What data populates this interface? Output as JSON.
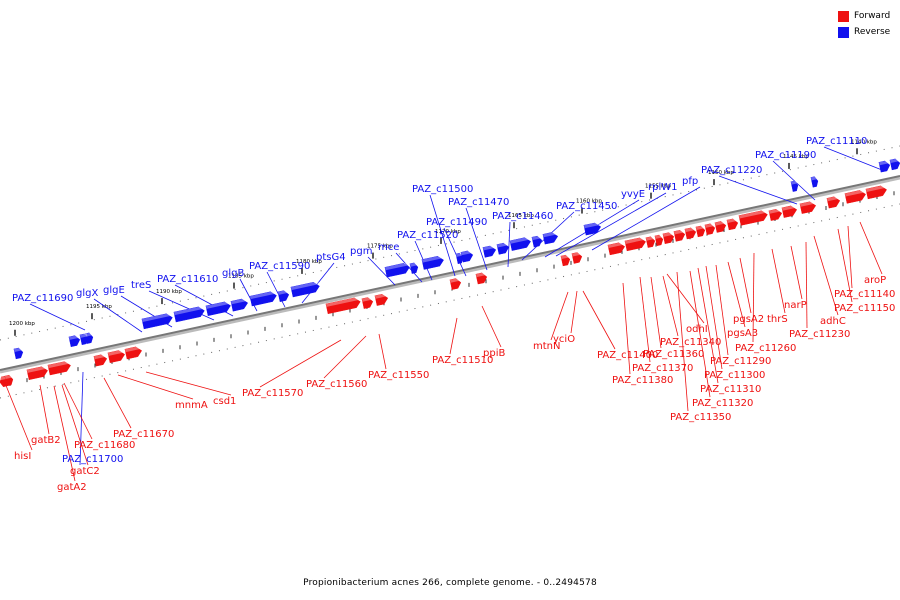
{
  "legend": {
    "forward_label": "Forward",
    "reverse_label": "Reverse"
  },
  "colors": {
    "forward": "#ee1111",
    "reverse": "#1111ee",
    "backbone": "#777777"
  },
  "caption": "Propionibacterium acnes 266, complete genome. - 0..2494578",
  "scale_ticks": [
    "1200 kbp",
    "1195 kbp",
    "1190 kbp",
    "1185 kbp",
    "1180 kbp",
    "1175 kbp",
    "1170 kbp",
    "1165 kbp",
    "1160 kbp",
    "1155 kbp",
    "1150 kbp",
    "1145 kbp",
    "1140 kbp"
  ],
  "genes": [
    {
      "label": "hisI",
      "strand": "forward"
    },
    {
      "label": "gatB2",
      "strand": "forward"
    },
    {
      "label": "PAZ_c11700",
      "strand": "reverse"
    },
    {
      "label": "PAZ_c11680",
      "strand": "forward"
    },
    {
      "label": "gatC2",
      "strand": "forward"
    },
    {
      "label": "gatA2",
      "strand": "forward"
    },
    {
      "label": "PAZ_c11670",
      "strand": "forward"
    },
    {
      "label": "mnmA",
      "strand": "forward"
    },
    {
      "label": "csd1",
      "strand": "forward"
    },
    {
      "label": "PAZ_c11570",
      "strand": "forward"
    },
    {
      "label": "PAZ_c11560",
      "strand": "forward"
    },
    {
      "label": "PAZ_c11550",
      "strand": "forward"
    },
    {
      "label": "PAZ_c11510",
      "strand": "forward"
    },
    {
      "label": "ppiB",
      "strand": "forward"
    },
    {
      "label": "mtnN",
      "strand": "forward"
    },
    {
      "label": "yciO",
      "strand": "forward"
    },
    {
      "label": "PAZ_c11400",
      "strand": "forward"
    },
    {
      "label": "PAZ_c11380",
      "strand": "forward"
    },
    {
      "label": "PAZ_c11370",
      "strand": "forward"
    },
    {
      "label": "PAZ_c11360",
      "strand": "forward"
    },
    {
      "label": "PAZ_c11340",
      "strand": "forward"
    },
    {
      "label": "odhI",
      "strand": "forward"
    },
    {
      "label": "PAZ_c11350",
      "strand": "forward"
    },
    {
      "label": "PAZ_c11320",
      "strand": "forward"
    },
    {
      "label": "PAZ_c11310",
      "strand": "forward"
    },
    {
      "label": "PAZ_c11300",
      "strand": "forward"
    },
    {
      "label": "PAZ_c11290",
      "strand": "forward"
    },
    {
      "label": "pgsA3",
      "strand": "forward"
    },
    {
      "label": "pgsA2",
      "strand": "forward"
    },
    {
      "label": "PAZ_c11260",
      "strand": "forward"
    },
    {
      "label": "thrS",
      "strand": "forward"
    },
    {
      "label": "narP",
      "strand": "forward"
    },
    {
      "label": "PAZ_c11230",
      "strand": "forward"
    },
    {
      "label": "adhC",
      "strand": "forward"
    },
    {
      "label": "PAZ_c11150",
      "strand": "forward"
    },
    {
      "label": "PAZ_c11140",
      "strand": "forward"
    },
    {
      "label": "aroP",
      "strand": "forward"
    },
    {
      "label": "PAZ_c11690",
      "strand": "reverse"
    },
    {
      "label": "glgX",
      "strand": "reverse"
    },
    {
      "label": "glgE",
      "strand": "reverse"
    },
    {
      "label": "treS",
      "strand": "reverse"
    },
    {
      "label": "PAZ_c11610",
      "strand": "reverse"
    },
    {
      "label": "glgB",
      "strand": "reverse"
    },
    {
      "label": "PAZ_c11590",
      "strand": "reverse"
    },
    {
      "label": "ptsG4",
      "strand": "reverse"
    },
    {
      "label": "pgm",
      "strand": "reverse"
    },
    {
      "label": "mce",
      "strand": "reverse"
    },
    {
      "label": "PAZ_c11520",
      "strand": "reverse"
    },
    {
      "label": "PAZ_c11490",
      "strand": "reverse"
    },
    {
      "label": "PAZ_c11500",
      "strand": "reverse"
    },
    {
      "label": "PAZ_c11470",
      "strand": "reverse"
    },
    {
      "label": "PAZ_c11460",
      "strand": "reverse"
    },
    {
      "label": "PAZ_c11450",
      "strand": "reverse"
    },
    {
      "label": "yvyE",
      "strand": "reverse"
    },
    {
      "label": "rplW1",
      "strand": "reverse"
    },
    {
      "label": "pfp",
      "strand": "reverse"
    },
    {
      "label": "PAZ_c11220",
      "strand": "reverse"
    },
    {
      "label": "PAZ_c11190",
      "strand": "reverse"
    },
    {
      "label": "PAZ_c11110",
      "strand": "reverse"
    }
  ]
}
